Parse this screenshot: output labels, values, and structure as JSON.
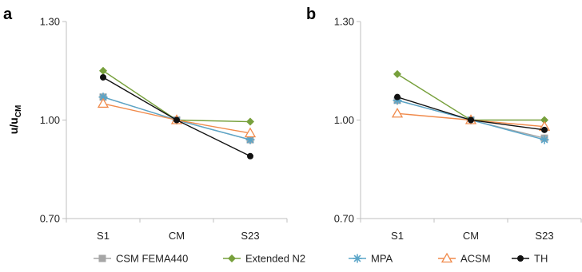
{
  "chart_data": [
    {
      "type": "line",
      "panel_label": "a",
      "ylabel": "u/u",
      "ylabel_subscript": "CM",
      "categories": [
        "S1",
        "CM",
        "S23"
      ],
      "ylim": [
        0.7,
        1.3
      ],
      "yticks": [
        "0.70",
        "1.00",
        "1.30"
      ],
      "series": [
        {
          "name": "CSM FEMA440",
          "values": [
            1.07,
            1.0,
            0.94
          ]
        },
        {
          "name": "Extended N2",
          "values": [
            1.15,
            1.0,
            0.995
          ]
        },
        {
          "name": "MPA",
          "values": [
            1.07,
            1.0,
            0.94
          ]
        },
        {
          "name": "ACSM",
          "values": [
            1.05,
            1.0,
            0.96
          ]
        },
        {
          "name": "TH",
          "values": [
            1.13,
            1.0,
            0.89
          ]
        }
      ]
    },
    {
      "type": "line",
      "panel_label": "b",
      "categories": [
        "S1",
        "CM",
        "S23"
      ],
      "ylim": [
        0.7,
        1.3
      ],
      "yticks": [
        "0.70",
        "1.00",
        "1.30"
      ],
      "series": [
        {
          "name": "CSM FEMA440",
          "values": [
            1.06,
            1.0,
            0.945
          ]
        },
        {
          "name": "Extended N2",
          "values": [
            1.14,
            1.0,
            1.0
          ]
        },
        {
          "name": "MPA",
          "values": [
            1.06,
            1.0,
            0.94
          ]
        },
        {
          "name": "ACSM",
          "values": [
            1.02,
            1.0,
            0.98
          ]
        },
        {
          "name": "TH",
          "values": [
            1.07,
            1.0,
            0.97
          ]
        }
      ]
    }
  ],
  "legend": [
    "CSM FEMA440",
    "Extended N2",
    "MPA",
    "ACSM",
    "TH"
  ],
  "styles": {
    "CSM FEMA440": {
      "color": "#a6a6a6",
      "marker": "square"
    },
    "Extended N2": {
      "color": "#77a03c",
      "marker": "diamond"
    },
    "MPA": {
      "color": "#5aa5c8",
      "marker": "asterisk"
    },
    "ACSM": {
      "color": "#f08a4b",
      "marker": "triangle-open"
    },
    "TH": {
      "color": "#111111",
      "marker": "circle"
    }
  },
  "axis_color": "#bfbfbf"
}
